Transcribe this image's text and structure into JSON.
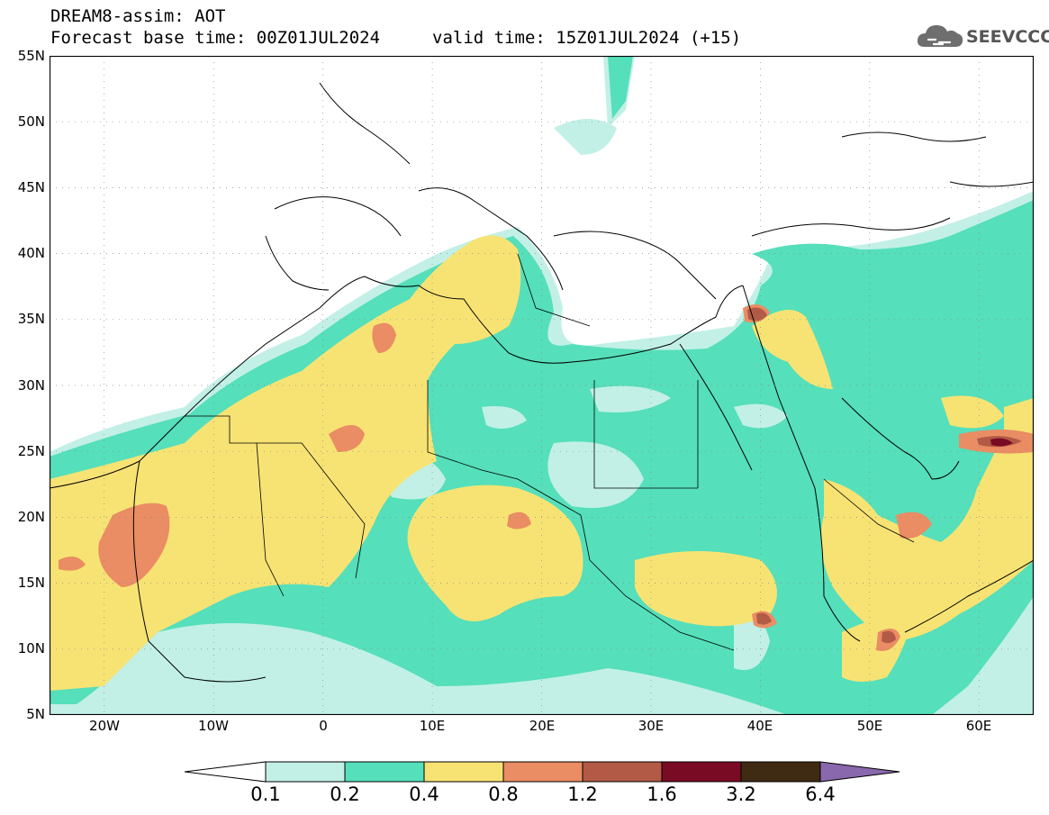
{
  "header": {
    "title": "DREAM8-assim: AOT",
    "base_time": "Forecast base time: 00Z01JUL2024",
    "valid_time": "valid time: 15Z01JUL2024 (+15)"
  },
  "logo": {
    "text": "SEEVCCC",
    "icon": "cloud-icon",
    "color": "#555555"
  },
  "map": {
    "lat_labels": [
      "55N",
      "50N",
      "45N",
      "40N",
      "35N",
      "30N",
      "25N",
      "20N",
      "15N",
      "10N",
      "5N"
    ],
    "lon_labels": [
      "20W",
      "10W",
      "0",
      "10E",
      "20E",
      "30E",
      "40E",
      "50E",
      "60E"
    ],
    "lat_range": [
      5,
      55
    ],
    "lon_range": [
      -25,
      65
    ],
    "variable": "AOT"
  },
  "legend": {
    "ticks": [
      "0.1",
      "0.2",
      "0.4",
      "0.8",
      "1.2",
      "1.6",
      "3.2",
      "6.4"
    ],
    "colors": [
      "#ffffff",
      "#c2f0e6",
      "#55dfba",
      "#f7e374",
      "#ea8c64",
      "#b25a45",
      "#7a0b24",
      "#3f2a14",
      "#8a68ad"
    ]
  }
}
